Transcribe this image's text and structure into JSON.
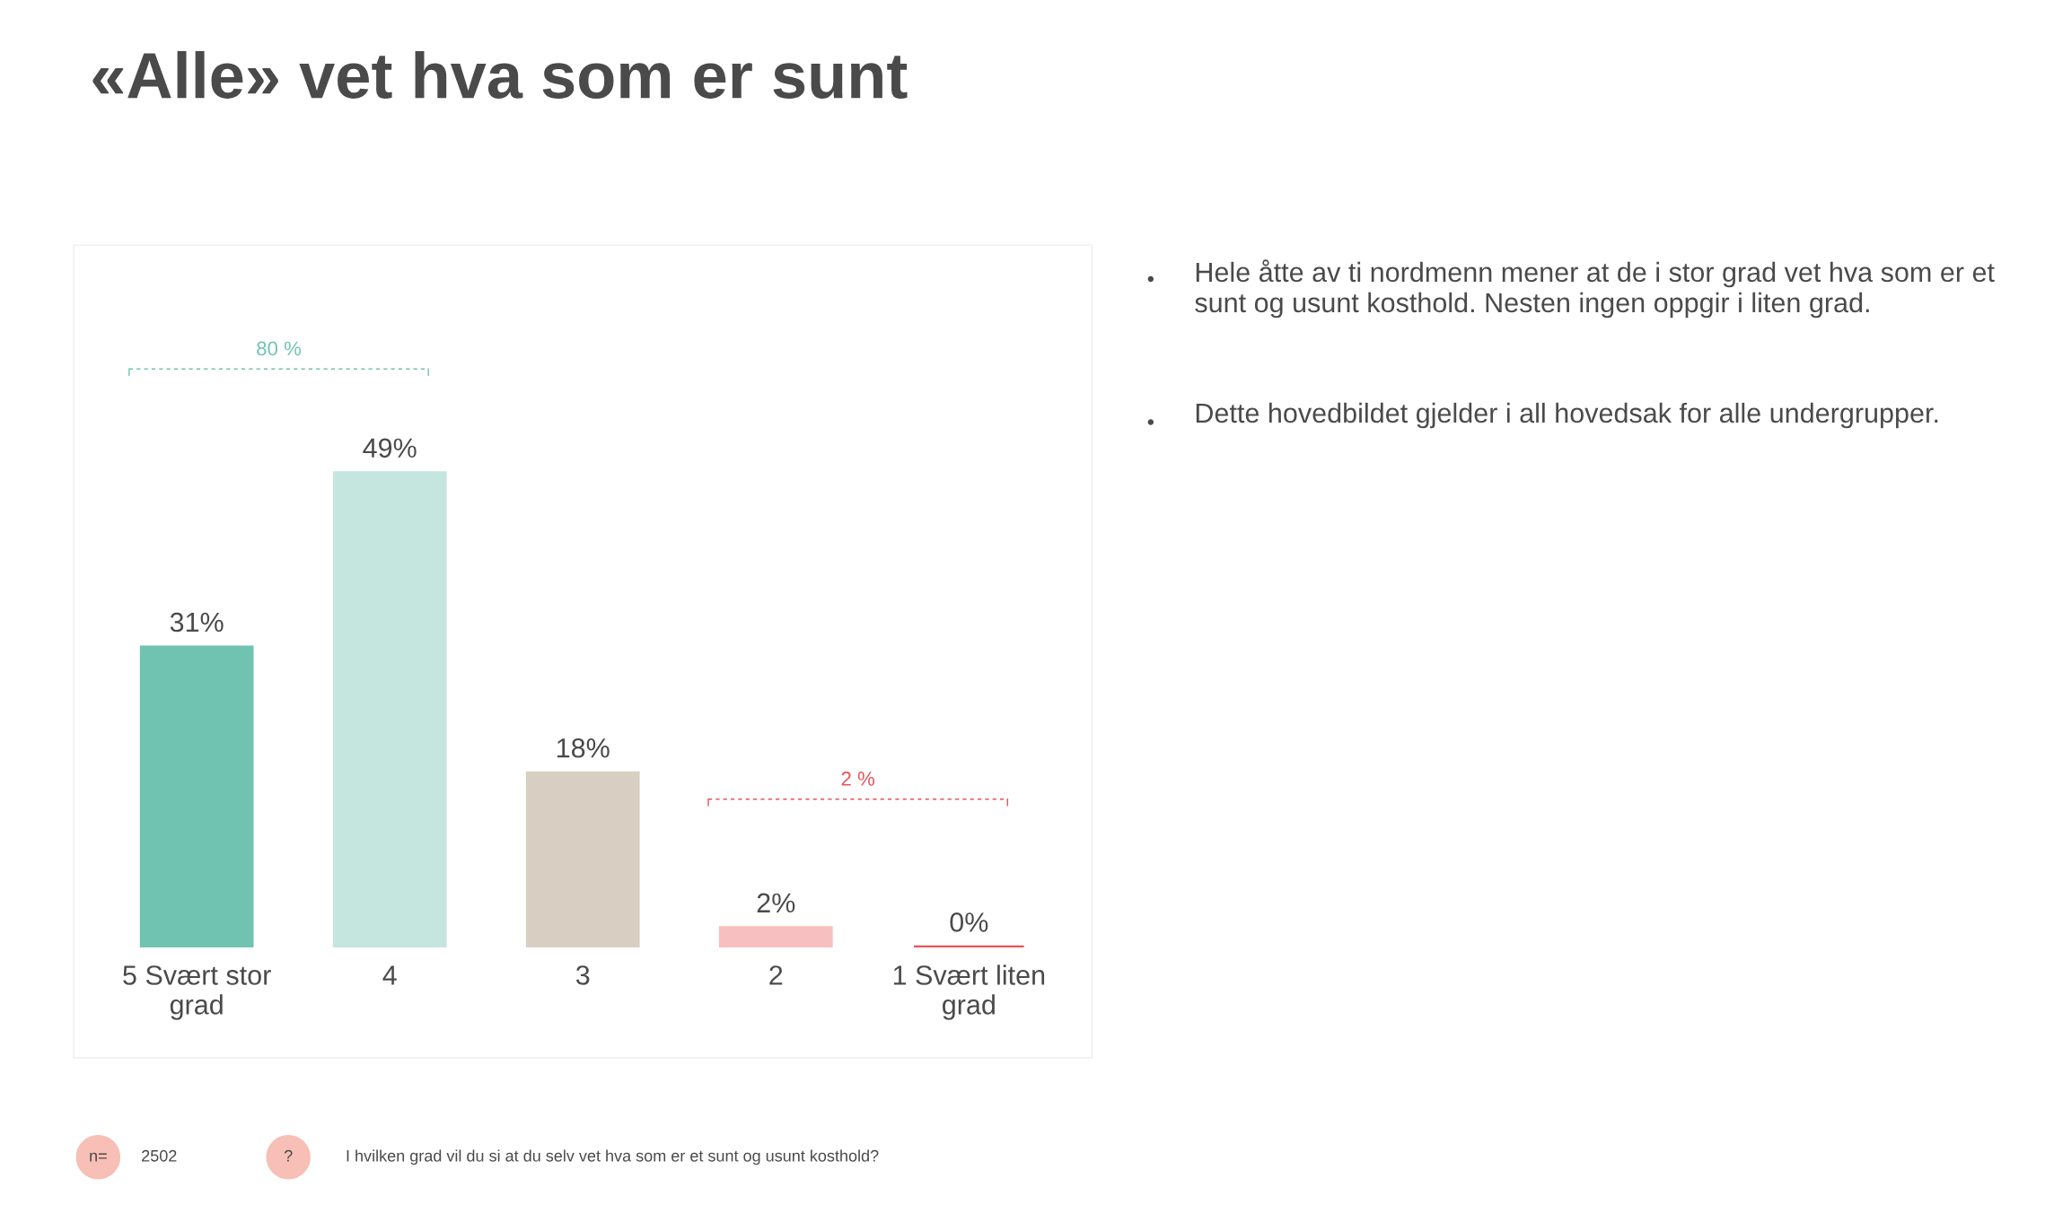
{
  "chart_data": {
    "type": "bar",
    "title": "«Alle» vet hva som er sunt",
    "categories": [
      "5 Svært stor\ngrad",
      "4",
      "3",
      "2",
      "1 Svært liten\ngrad"
    ],
    "values": [
      31,
      49,
      18,
      2,
      0
    ],
    "colors": [
      "#71c3b1",
      "#c5e5df",
      "#d8cfc2",
      "#f7bfbf",
      "#e8545a"
    ],
    "data_labels": true,
    "value_labels": [
      "31%",
      "49%",
      "18%",
      "2%",
      "0%"
    ],
    "tick_labels": "x",
    "grid": false,
    "legend": false,
    "annotations": [
      "80 %",
      "2 %",
      "Hele åtte av ti nordmenn mener at de i stor grad vet hva som er et sunt og usunt kosthold. Nesten ingen oppgir i liten grad.",
      "Dette hovedbildet gjelder i all hovedsak for alle undergrupper.",
      "n=",
      "2502",
      "?",
      "I hvilken grad vil du si at du selv vet hva som er et sunt og usunt kosthold?"
    ]
  }
}
